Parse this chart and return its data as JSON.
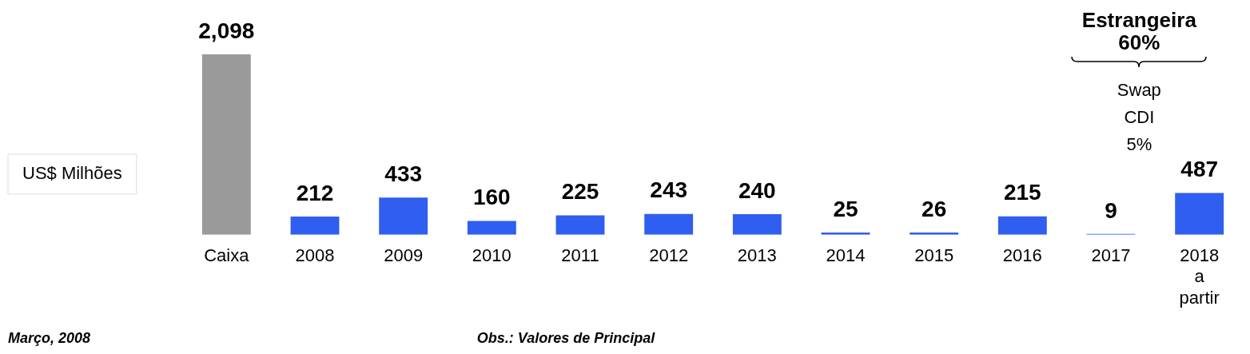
{
  "chart_data": {
    "type": "bar",
    "categories": [
      "Caixa",
      "2008",
      "2009",
      "2010",
      "2011",
      "2012",
      "2013",
      "2014",
      "2015",
      "2016",
      "2017",
      "2018 a partir"
    ],
    "values": [
      2098,
      212,
      433,
      160,
      225,
      243,
      240,
      25,
      26,
      215,
      9,
      487
    ],
    "colors": [
      "#9a9a9a",
      "#2f5ef0",
      "#2f5ef0",
      "#2f5ef0",
      "#2f5ef0",
      "#2f5ef0",
      "#2f5ef0",
      "#2f5ef0",
      "#2f5ef0",
      "#2f5ef0",
      "#2f5ef0",
      "#2f5ef0"
    ],
    "value_labels": [
      "2,098",
      "212",
      "433",
      "160",
      "225",
      "243",
      "240",
      "25",
      "26",
      "215",
      "9",
      "487"
    ],
    "annotations": [
      "US$ Milhões",
      "Estrangeira 60%",
      "Swap CDI 5%",
      "Março, 2008",
      "Obs.: Valores de Principal"
    ],
    "tick_labels": "x",
    "grid": false,
    "legend": false
  }
}
